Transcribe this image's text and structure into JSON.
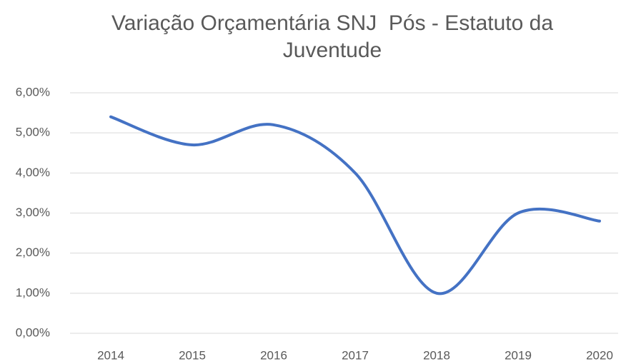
{
  "chart_data": {
    "type": "line",
    "title": "Variação Orçamentária SNJ  Pós - Estatuto da Juventude",
    "categories": [
      "2014",
      "2015",
      "2016",
      "2017",
      "2018",
      "2019",
      "2020"
    ],
    "values": [
      5.4,
      4.7,
      5.2,
      4.0,
      1.0,
      3.0,
      2.8
    ],
    "color": "#4472c4",
    "ylim": [
      0,
      6
    ],
    "yticks": [
      {
        "value": 0,
        "label": "0,00%"
      },
      {
        "value": 1,
        "label": "1,00%"
      },
      {
        "value": 2,
        "label": "2,00%"
      },
      {
        "value": 3,
        "label": "3,00%"
      },
      {
        "value": 4,
        "label": "4,00%"
      },
      {
        "value": 5,
        "label": "5,00%"
      },
      {
        "value": 6,
        "label": "6,00%"
      }
    ],
    "grid": true,
    "smooth": true
  }
}
